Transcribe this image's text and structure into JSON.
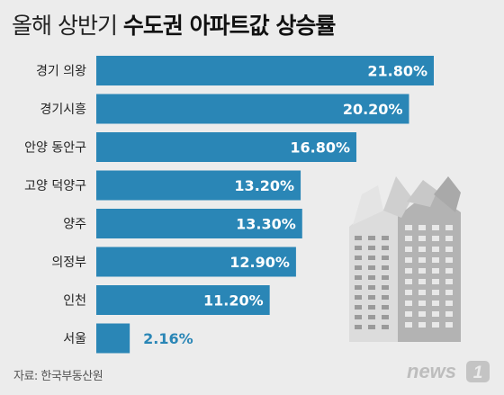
{
  "title": {
    "light": "올해 상반기 ",
    "bold": "수도권 아파트값 상승률"
  },
  "source": "자료: 한국부동산원",
  "logo": {
    "text": "news",
    "mark": "1"
  },
  "colors": {
    "bar": "#2a86b6",
    "bar_text": "#ffffff",
    "outside_text": "#2a86b6",
    "label": "#222222",
    "bg": "#ececec"
  },
  "chart_data": {
    "type": "bar",
    "orientation": "horizontal",
    "categories": [
      "경기 의왕",
      "경기시흥",
      "안양 동안구",
      "고양 덕양구",
      "양주",
      "의정부",
      "인천",
      "서울"
    ],
    "values": [
      21.8,
      20.2,
      16.8,
      13.2,
      13.3,
      12.9,
      11.2,
      2.16
    ],
    "value_labels": [
      "21.80%",
      "20.20%",
      "16.80%",
      "13.20%",
      "13.30%",
      "12.90%",
      "11.20%",
      "2.16%"
    ],
    "unit": "%",
    "xlim": [
      0,
      21.8
    ]
  }
}
